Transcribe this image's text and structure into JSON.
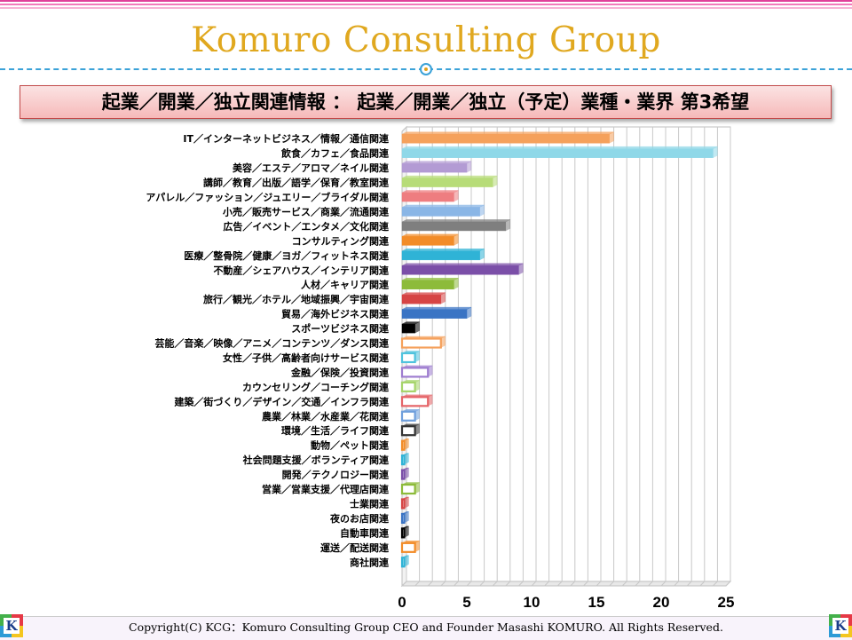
{
  "header": {
    "title": "Komuro Consulting Group",
    "subtitle": "起業／開業／独立関連情報 ： 起業／開業／独立（予定）業種・業界 第3希望"
  },
  "footer": {
    "copyright": "Copyright(C) KCG：Komuro Consulting Group CEO and Founder Masashi KOMURO. All Rights Reserved.",
    "logo_letter": "K"
  },
  "chart_data": {
    "type": "bar",
    "orientation": "horizontal",
    "title": "",
    "xlabel": "",
    "ylabel": "",
    "xlim": [
      0,
      25
    ],
    "xticks": [
      0,
      5,
      10,
      15,
      20,
      25
    ],
    "grid": true,
    "categories": [
      "IT／インターネットビジネス／情報／通信関連",
      "飲食／カフェ／食品関連",
      "美容／エステ／アロマ／ネイル関連",
      "講師／教育／出版／語学／保育／教室関連",
      "アパレル／ファッション／ジュエリー／ブライダル関連",
      "小売／販売サービス／商業／流通関連",
      "広告／イベント／エンタメ／文化関連",
      "コンサルティング関連",
      "医療／整骨院／健康／ヨガ／フィットネス関連",
      "不動産／シェアハウス／インテリア関連",
      "人材／キャリア関連",
      "旅行／観光／ホテル／地域振興／宇宙関連",
      "貿易／海外ビジネス関連",
      "スポーツビジネス関連",
      "芸能／音楽／映像／アニメ／コンテンツ／ダンス関連",
      "女性／子供／高齢者向けサービス関連",
      "金融／保険／投資関連",
      "カウンセリング／コーチング関連",
      "建築／街づくり／デザイン／交通／インフラ関連",
      "農業／林業／水産業／花関連",
      "環境／生活／ライフ関連",
      "動物／ペット関連",
      "社会問題支援／ボランティア関連",
      "開発／テクノロジー関連",
      "営業／営業支援／代理店関連",
      "士業関連",
      "夜のお店関連",
      "自動車関連",
      "運送／配送関連",
      "商社関連"
    ],
    "values": [
      16,
      24,
      5,
      7,
      4,
      6,
      8,
      4,
      6,
      9,
      4,
      3,
      5,
      1,
      3,
      1,
      2,
      1,
      2,
      1,
      1,
      0,
      0,
      0,
      1,
      0,
      0,
      0,
      1,
      0
    ],
    "colors": [
      "#f5a15c",
      "#8fd8e8",
      "#b39bd4",
      "#b7dc78",
      "#ee7d80",
      "#8ab6e6",
      "#7f7f7f",
      "#f28c28",
      "#2fb3d6",
      "#7b4fa8",
      "#8dbb3a",
      "#d64545",
      "#3a74c4",
      "#000000",
      "#f5a15c",
      "#4fc3dd",
      "#9e7dd0",
      "#a6d46a",
      "#e56468",
      "#6f9fdc",
      "#333333",
      "#f28c28",
      "#2fb3d6",
      "#7b4fa8",
      "#8dbb3a",
      "#d64545",
      "#3a74c4",
      "#000000",
      "#f28c28",
      "#2fb3d6"
    ],
    "hollow_from_index": 14
  }
}
